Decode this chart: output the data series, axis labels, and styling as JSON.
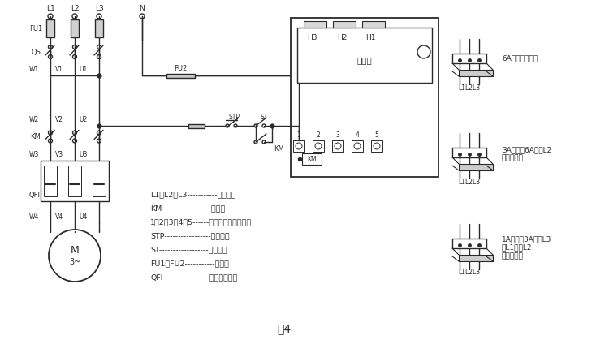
{
  "bg_color": "#ffffff",
  "line_color": "#2a2a2a",
  "title": "图4",
  "legend_lines": [
    "L1、L2、L3-----------三相电源",
    "KM------------------接触器",
    "1、2、3、4、5------保护器接线端子号码",
    "STP-----------------停止按鈕",
    "ST------------------启动按鈕",
    "FU1、FU2-----------熔断器",
    "QFI-----------------电动机保护器"
  ],
  "label_L1": "L1",
  "label_L2": "L2",
  "label_L3": "L3",
  "label_N": "N",
  "label_FU1": "FU1",
  "label_FU2": "FU2",
  "label_QS": "QS",
  "label_KM": "KM",
  "label_QFI": "QFI",
  "label_W1": "W1",
  "label_V1": "V1",
  "label_U1": "U1",
  "label_W2": "W2",
  "label_V2": "V2",
  "label_U2": "U2",
  "label_W3": "W3",
  "label_V3": "V3",
  "label_U3": "U3",
  "label_W4": "W4",
  "label_V4": "V4",
  "label_U4": "U4",
  "label_STP": "STP",
  "label_ST": "ST",
  "label_M": "M",
  "label_3tilde": "3~",
  "label_H3": "H3",
  "label_H2": "H2",
  "label_H1": "H1",
  "label_baohuqi": "保护器",
  "label_L1L2L3": "L1L2L3",
  "core_label_1": "6A以上一次穿心",
  "core_label_2": "3A以上，6A以下L2\n相二次穿心",
  "core_label_3": "1A以上，3A以下L3\n、L1两次L2\n相三次穿心"
}
